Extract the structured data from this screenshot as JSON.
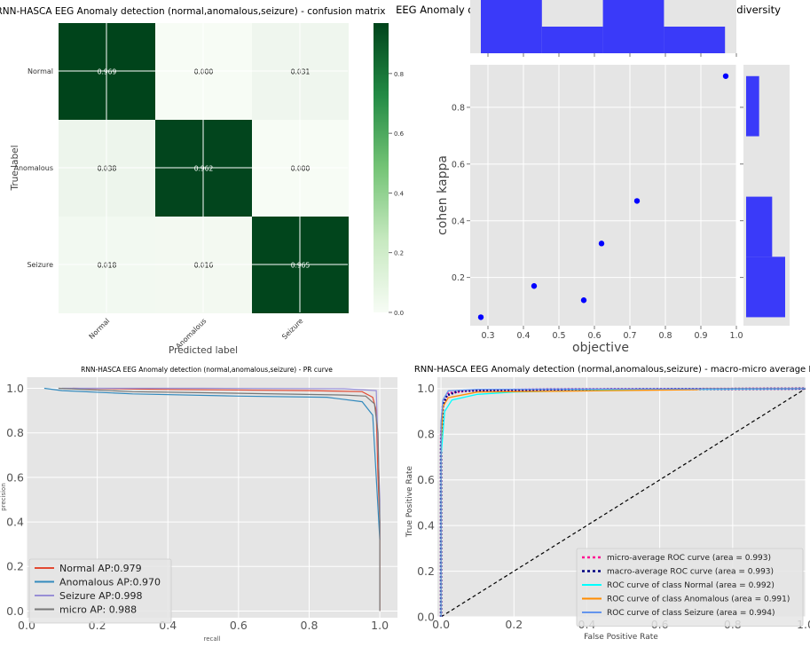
{
  "chart_data": [
    {
      "id": "cm",
      "type": "heatmap",
      "title": "RNN-HASCA EEG Anomaly detection (normal,anomalous,seizure) -  confusion matrix",
      "xlabel": "Predicted label",
      "ylabel": "True label",
      "rows": [
        "Normal",
        "Anomalous",
        "Seizure"
      ],
      "cols": [
        "Normal",
        "Anomalous",
        "Seizure"
      ],
      "values": [
        [
          0.969,
          0.0,
          0.031
        ],
        [
          0.038,
          0.962,
          0.0
        ],
        [
          0.018,
          0.016,
          0.965
        ]
      ],
      "cell_labels": [
        [
          "0.969",
          "0.000",
          "0.031"
        ],
        [
          "0.038",
          "0.962",
          "0.000"
        ],
        [
          "0.018",
          "0.016",
          "0.965"
        ]
      ],
      "colorbar": {
        "min": 0,
        "max": 0.969,
        "ticks": [
          "0.0",
          "0.2",
          "0.4",
          "0.6",
          "0.8"
        ],
        "low_color": "#f7fcf5",
        "high_color": "#00441b"
      }
    },
    {
      "id": "div",
      "type": "scatter",
      "title": "EEG Anomaly detection (normal,anomalous,seizure) -  RNN-HASCA diversity",
      "xlabel": "objective",
      "ylabel": "cohen kappa",
      "xlim": [
        0.25,
        1.0
      ],
      "ylim": [
        0.03,
        0.95
      ],
      "xticks": [
        "0.3",
        "0.4",
        "0.5",
        "0.6",
        "0.7",
        "0.8",
        "0.9",
        "1.0"
      ],
      "yticks": [
        "0.2",
        "0.4",
        "0.6",
        "0.8"
      ],
      "points": [
        [
          0.28,
          0.06
        ],
        [
          0.43,
          0.17
        ],
        [
          0.57,
          0.12
        ],
        [
          0.62,
          0.32
        ],
        [
          0.72,
          0.47
        ],
        [
          0.97,
          0.91
        ]
      ],
      "x_hist": {
        "edges": [
          0.28,
          0.452,
          0.624,
          0.796,
          0.968
        ],
        "counts": [
          2,
          1,
          2,
          1
        ]
      },
      "y_hist": {
        "edges": [
          0.06,
          0.273,
          0.485,
          0.698,
          0.91
        ],
        "counts": [
          3,
          2,
          0,
          1
        ]
      },
      "color": "#0000ff"
    },
    {
      "id": "pr",
      "type": "line",
      "title": "RNN-HASCA EEG Anomaly detection (normal,anomalous,seizure) -  PR curve",
      "xlabel": "recall",
      "ylabel": "precision",
      "xlim": [
        0.0,
        1.05
      ],
      "ylim": [
        -0.03,
        1.05
      ],
      "xticks": [
        "0.0",
        "0.2",
        "0.4",
        "0.6",
        "0.8",
        "1.0"
      ],
      "yticks": [
        "0.0",
        "0.2",
        "0.4",
        "0.6",
        "0.8",
        "1.0"
      ],
      "series": [
        {
          "name": "Normal AP:0.979",
          "color": "#e24a33",
          "points": [
            [
              0.13,
              1.0
            ],
            [
              0.4,
              0.995
            ],
            [
              0.8,
              0.99
            ],
            [
              0.95,
              0.985
            ],
            [
              0.98,
              0.96
            ],
            [
              0.99,
              0.9
            ],
            [
              0.995,
              0.6
            ],
            [
              1.0,
              0.4
            ],
            [
              1.0,
              0.0
            ]
          ]
        },
        {
          "name": "Anomalous AP:0.970",
          "color": "#348abd",
          "points": [
            [
              0.05,
              1.0
            ],
            [
              0.1,
              0.99
            ],
            [
              0.3,
              0.975
            ],
            [
              0.6,
              0.965
            ],
            [
              0.85,
              0.96
            ],
            [
              0.95,
              0.94
            ],
            [
              0.98,
              0.88
            ],
            [
              0.99,
              0.6
            ],
            [
              1.0,
              0.32
            ]
          ]
        },
        {
          "name": "Seizure AP:0.998",
          "color": "#988ed5",
          "points": [
            [
              0.1,
              1.0
            ],
            [
              0.5,
              1.0
            ],
            [
              0.9,
              0.998
            ],
            [
              0.99,
              0.99
            ],
            [
              1.0,
              0.5
            ],
            [
              1.0,
              0.32
            ]
          ]
        },
        {
          "name": "micro AP: 0.988",
          "color": "#777777",
          "points": [
            [
              0.09,
              1.0
            ],
            [
              0.3,
              0.985
            ],
            [
              0.6,
              0.978
            ],
            [
              0.9,
              0.97
            ],
            [
              0.96,
              0.965
            ],
            [
              0.985,
              0.93
            ],
            [
              0.995,
              0.8
            ],
            [
              1.0,
              0.4
            ],
            [
              1.0,
              0.0
            ]
          ]
        }
      ]
    },
    {
      "id": "roc",
      "type": "line",
      "title": "RNN-HASCA EEG Anomaly detection (normal,anomalous,seizure) -  macro-micro average ROC",
      "xlabel": "False Positive Rate",
      "ylabel": "True Positive Rate",
      "xlim": [
        -0.01,
        1.0
      ],
      "ylim": [
        0.0,
        1.05
      ],
      "xticks": [
        "0.0",
        "0.2",
        "0.4",
        "0.6",
        "0.8",
        "1.0"
      ],
      "yticks": [
        "0.0",
        "0.2",
        "0.4",
        "0.6",
        "0.8",
        "1.0"
      ],
      "series": [
        {
          "name": "micro-average ROC curve (area = 0.993)",
          "color": "#ff1493",
          "dash": "2,2",
          "width": 2.5,
          "points": [
            [
              0,
              0
            ],
            [
              0,
              0.8
            ],
            [
              0.005,
              0.93
            ],
            [
              0.02,
              0.98
            ],
            [
              0.08,
              0.992
            ],
            [
              0.3,
              0.997
            ],
            [
              1.0,
              1.0
            ]
          ]
        },
        {
          "name": "macro-average ROC curve (area = 0.993)",
          "color": "#000080",
          "dash": "2,2",
          "width": 2.5,
          "points": [
            [
              0,
              0
            ],
            [
              0,
              0.75
            ],
            [
              0.005,
              0.92
            ],
            [
              0.015,
              0.97
            ],
            [
              0.05,
              0.99
            ],
            [
              0.3,
              0.996
            ],
            [
              1.0,
              1.0
            ]
          ]
        },
        {
          "name": "ROC curve of class Normal (area = 0.992)",
          "color": "#00ffff",
          "dash": "",
          "width": 1.3,
          "points": [
            [
              0,
              0
            ],
            [
              0,
              0.7
            ],
            [
              0.01,
              0.9
            ],
            [
              0.03,
              0.95
            ],
            [
              0.1,
              0.975
            ],
            [
              0.2,
              0.985
            ],
            [
              0.5,
              0.995
            ],
            [
              1.0,
              1.0
            ]
          ]
        },
        {
          "name": "ROC curve of class Anomalous (area = 0.991)",
          "color": "#ff8c00",
          "dash": "",
          "width": 1.3,
          "points": [
            [
              0,
              0
            ],
            [
              0,
              0.75
            ],
            [
              0.005,
              0.92
            ],
            [
              0.02,
              0.96
            ],
            [
              0.1,
              0.985
            ],
            [
              0.7,
              0.995
            ],
            [
              0.72,
              1.0
            ],
            [
              1.0,
              1.0
            ]
          ]
        },
        {
          "name": "ROC curve of class Seizure (area = 0.994)",
          "color": "#6495ed",
          "dash": "",
          "width": 1.3,
          "points": [
            [
              0,
              0
            ],
            [
              0,
              0.85
            ],
            [
              0.005,
              0.95
            ],
            [
              0.02,
              0.99
            ],
            [
              0.1,
              0.997
            ],
            [
              1.0,
              1.0
            ]
          ]
        }
      ],
      "diagonal": true
    }
  ]
}
